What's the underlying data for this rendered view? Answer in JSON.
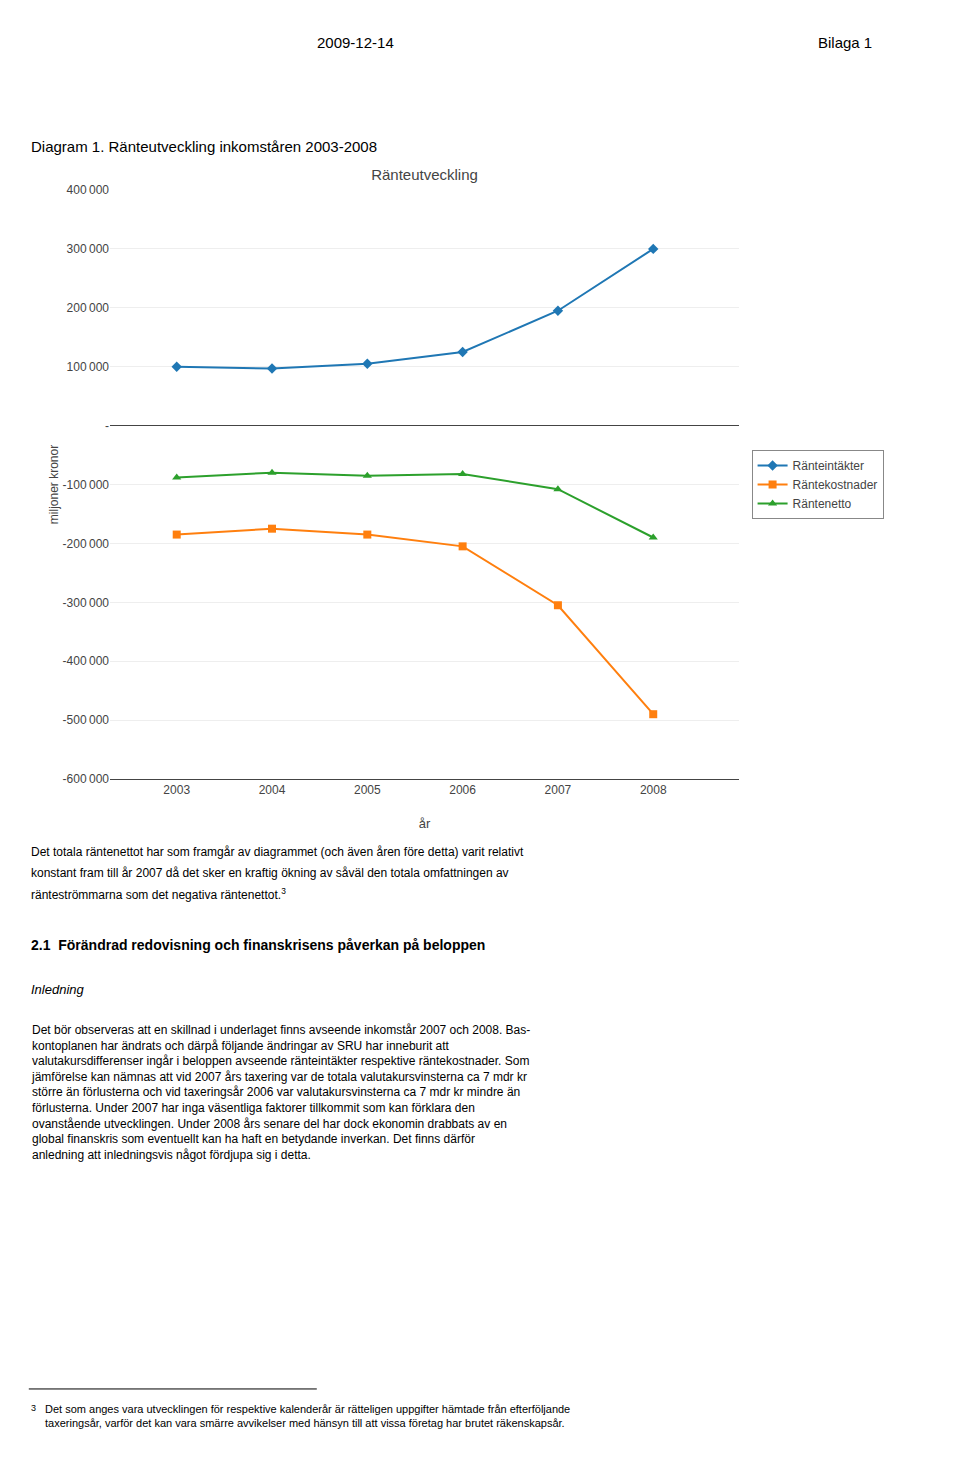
{
  "chart_data": {
    "type": "line",
    "title": "Ränteutveckling",
    "xlabel": "år",
    "ylabel": "miljoner kronor",
    "x": [
      2003,
      2004,
      2005,
      2006,
      2007,
      2008
    ],
    "series": [
      {
        "name": "Ränteintäkter",
        "values": [
          100000,
          97000,
          105000,
          125000,
          195000,
          300000
        ],
        "marker": "diamond"
      },
      {
        "name": "Räntekostnader",
        "values": [
          -185000,
          -175000,
          -185000,
          -205000,
          -305000,
          -490000
        ],
        "marker": "square"
      },
      {
        "name": "Räntenetto",
        "values": [
          -88000,
          -80000,
          -85000,
          -82000,
          -108000,
          -190000
        ],
        "marker": "triangle-up"
      }
    ],
    "xlim": [
      2002.3,
      2008.9
    ],
    "xticks": [
      2003,
      2004,
      2005,
      2006,
      2007,
      2008
    ],
    "ylim": [
      -600000,
      400000
    ],
    "yticks": [
      {
        "value": -600000,
        "label": "-600 000"
      },
      {
        "value": -500000,
        "label": "-500 000"
      },
      {
        "value": -400000,
        "label": "-400 000"
      },
      {
        "value": -300000,
        "label": "-300 000"
      },
      {
        "value": -200000,
        "label": "-200 000"
      },
      {
        "value": -100000,
        "label": "-100 000"
      },
      {
        "value": 0,
        "label": "-"
      },
      {
        "value": 100000,
        "label": "100 000"
      },
      {
        "value": 200000,
        "label": "200 000"
      },
      {
        "value": 300000,
        "label": "300 000"
      },
      {
        "value": 400000,
        "label": "400 000"
      }
    ],
    "grid": "y",
    "legend": "right",
    "annotations": [
      "2009-12-14",
      "Bilaga 1",
      "Diagram 1. Ränteutveckling inkomståren 2003-2008",
      "Det totala räntenettot har som framgår av diagrammet (och även åren före detta) varit relativt",
      "konstant fram till år 2007 då det sker en kraftig ökning av såväl den totala omfattningen av",
      "ränteströmmarna som det negativa räntenettot.",
      "3",
      "2.1  Förändrad redovisning och finanskrisens påverkan på beloppen",
      "Inledning",
      "Det bör observeras att en skillnad i underlaget finns avseende inkomstår 2007 och 2008. Bas-\nkontoplanen har ändrats och därpå följande ändringar av SRU har inneburit att\nvalutakursdifferenser ingår i beloppen avseende ränteintäkter respektive räntekostnader. Som\njämförelse kan nämnas att vid 2007 års taxering var de totala valutakursvinsterna ca 7 mdr kr\nstörre än förlusterna och vid taxeringsår 2006 var valutakursvinsterna ca 7 mdr kr mindre än\nförlusterna. Under 2007 har inga väsentliga faktorer tillkommit som kan förklara den\novanstående utvecklingen. Under 2008 års senare del har dock ekonomin drabbats av en\nglobal finanskris som eventuellt kan ha haft en betydande inverkan. Det finns därför\nanledning att inledningsvis något fördjupa sig i detta.",
      "3",
      "Det som anges vara utvecklingen för respektive kalenderår är rätteligen uppgifter hämtade från efterföljande\ntaxeringsår, varför det kan vara smärre avvikelser med hänsyn till att vissa företag har brutet räkenskapsår."
    ]
  }
}
